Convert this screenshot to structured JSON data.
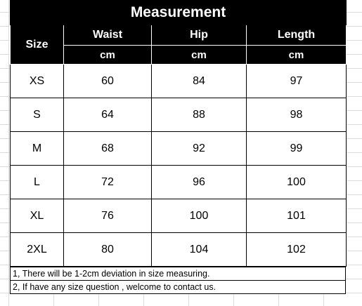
{
  "title": "Measurement",
  "size_label": "Size",
  "columns": [
    {
      "label": "Waist",
      "unit": "cm"
    },
    {
      "label": "Hip",
      "unit": "cm"
    },
    {
      "label": "Length",
      "unit": "cm"
    }
  ],
  "rows": [
    {
      "size": "XS",
      "values": [
        "60",
        "84",
        "97"
      ]
    },
    {
      "size": "S",
      "values": [
        "64",
        "88",
        "98"
      ]
    },
    {
      "size": "M",
      "values": [
        "68",
        "92",
        "99"
      ]
    },
    {
      "size": "L",
      "values": [
        "72",
        "96",
        "100"
      ]
    },
    {
      "size": "XL",
      "values": [
        "76",
        "100",
        "101"
      ]
    },
    {
      "size": "2XL",
      "values": [
        "80",
        "104",
        "102"
      ]
    }
  ],
  "notes": [
    "1, There will be 1-2cm deviation in size measuring.",
    "2, If have any size question , welcome to contact us."
  ]
}
